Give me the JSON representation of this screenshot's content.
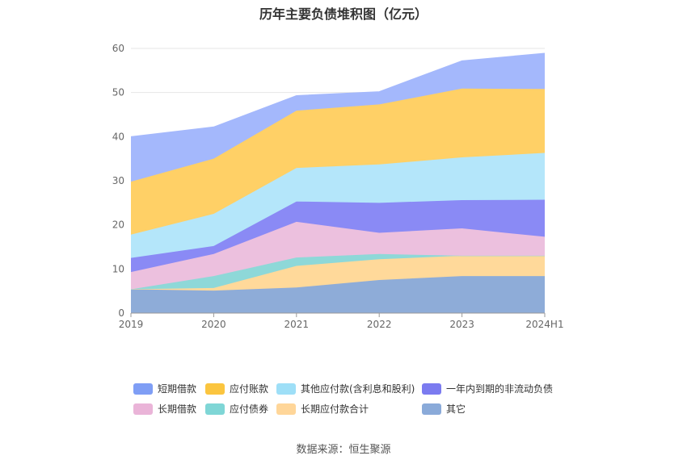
{
  "title": "历年主要负债堆积图（亿元）",
  "source": "数据来源：恒生聚源",
  "chart_data": {
    "type": "area",
    "stacked": true,
    "x": [
      "2019",
      "2020",
      "2021",
      "2022",
      "2023",
      "2024H1"
    ],
    "ylim": [
      0,
      60
    ],
    "yticks": [
      0,
      10,
      20,
      30,
      40,
      50,
      60
    ],
    "grid": true,
    "legend_position": "bottom",
    "series": [
      {
        "name": "其它",
        "color": "#8eacd8",
        "values": [
          5.4,
          5.1,
          5.8,
          7.5,
          8.4,
          8.4
        ]
      },
      {
        "name": "长期应付款合计",
        "color": "#ffd99a",
        "values": [
          0.0,
          0.6,
          4.9,
          4.7,
          4.6,
          4.6
        ]
      },
      {
        "name": "应付债券",
        "color": "#8ed8d8",
        "values": [
          0.0,
          2.7,
          1.9,
          1.2,
          0.0,
          0.0
        ]
      },
      {
        "name": "长期借款",
        "color": "#ecc0de",
        "values": [
          3.9,
          5.0,
          8.1,
          4.8,
          6.2,
          4.3
        ]
      },
      {
        "name": "一年内到期的非流动负债",
        "color": "#8a8af5",
        "values": [
          3.2,
          1.8,
          4.6,
          6.8,
          6.4,
          8.4
        ]
      },
      {
        "name": "其他应付款(含利息和股利)",
        "color": "#b4e6fa",
        "values": [
          5.3,
          7.3,
          7.6,
          8.7,
          9.7,
          10.6
        ]
      },
      {
        "name": "应付账款",
        "color": "#ffd066",
        "values": [
          12.0,
          12.5,
          13.0,
          13.6,
          15.6,
          14.5
        ]
      },
      {
        "name": "短期借款",
        "color": "#a4b8fc",
        "values": [
          10.2,
          7.2,
          3.4,
          2.9,
          6.3,
          8.1
        ]
      }
    ]
  },
  "legend": {
    "rows": [
      [
        "短期借款",
        "应付账款",
        "其他应付款(含利息和股利)",
        "一年内到期的非流动负债"
      ],
      [
        "长期借款",
        "应付债券",
        "长期应付款合计",
        "其它"
      ]
    ],
    "colors": {
      "短期借款": "#7f9ef5",
      "应付账款": "#fbc53f",
      "其他应付款(含利息和股利)": "#9edff7",
      "一年内到期的非流动负债": "#7b7bf0",
      "长期借款": "#eab4d8",
      "应付债券": "#7fd6d6",
      "长期应付款合计": "#ffd699",
      "其它": "#8aaad9"
    }
  }
}
